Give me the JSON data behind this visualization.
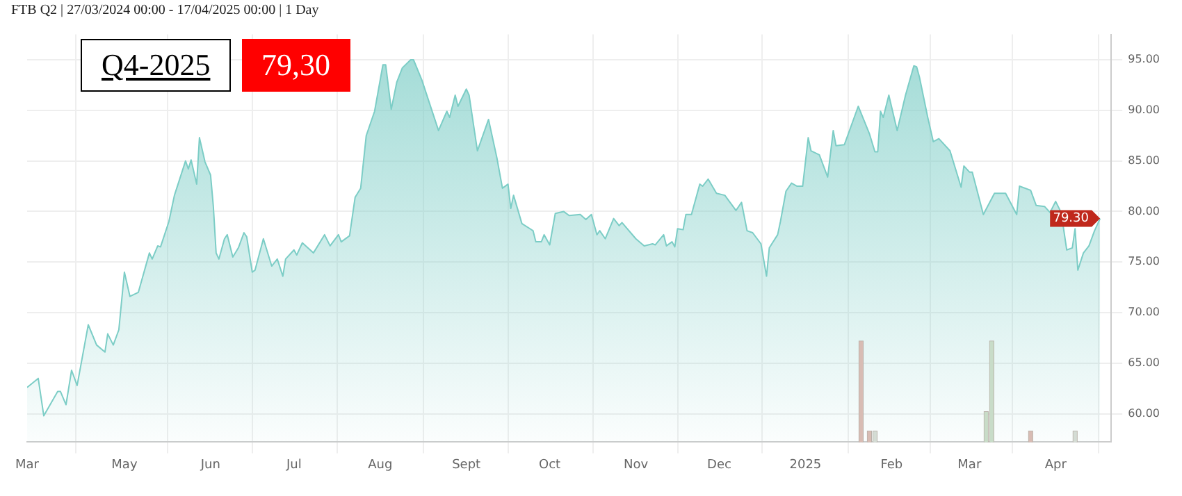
{
  "chart_data": {
    "type": "area",
    "title": "FTB Q2 | 27/03/2024 00:00 - 17/04/2025 00:00 | 1 Day",
    "annotations": [
      "Q4-2025",
      "79,30",
      {
        "text": "79.30",
        "x": "2025-04-17",
        "y": 79.3
      }
    ],
    "xlim": [
      "2024-03-27",
      "2025-04-21"
    ],
    "xticks": [
      {
        "value": "2024-03-27",
        "label": "Mar"
      },
      {
        "value": "2024-05-01",
        "label": "May"
      },
      {
        "value": "2024-06-01",
        "label": "Jun"
      },
      {
        "value": "2024-07-01",
        "label": "Jul"
      },
      {
        "value": "2024-08-01",
        "label": "Aug"
      },
      {
        "value": "2024-09-01",
        "label": "Sept"
      },
      {
        "value": "2024-10-01",
        "label": "Oct"
      },
      {
        "value": "2024-11-01",
        "label": "Nov"
      },
      {
        "value": "2024-12-01",
        "label": "Dec"
      },
      {
        "value": "2025-01-01",
        "label": "2025"
      },
      {
        "value": "2025-02-01",
        "label": "Feb"
      },
      {
        "value": "2025-03-01",
        "label": "Mar"
      },
      {
        "value": "2025-04-01",
        "label": "Apr"
      }
    ],
    "ylim": [
      57.2,
      97.5
    ],
    "yticks": [
      {
        "value": 60,
        "label": "60.00"
      },
      {
        "value": 65,
        "label": "65.00"
      },
      {
        "value": 70,
        "label": "70.00"
      },
      {
        "value": 75,
        "label": "75.00"
      },
      {
        "value": 80,
        "label": "80.00"
      },
      {
        "value": 85,
        "label": "85.00"
      },
      {
        "value": 90,
        "label": "90.00"
      },
      {
        "value": 95,
        "label": "95.00"
      }
    ],
    "grid": true,
    "legend": false,
    "series": [
      {
        "color": "#7ccdc6",
        "x": [
          "2024-03-27",
          "2024-03-31",
          "2024-04-02",
          "2024-04-07",
          "2024-04-08",
          "2024-04-10",
          "2024-04-12",
          "2024-04-14",
          "2024-04-18",
          "2024-04-21",
          "2024-04-24",
          "2024-04-25",
          "2024-04-27",
          "2024-04-29",
          "2024-05-01",
          "2024-05-03",
          "2024-05-06",
          "2024-05-10",
          "2024-05-11",
          "2024-05-13",
          "2024-05-14",
          "2024-05-17",
          "2024-05-19",
          "2024-05-23",
          "2024-05-24",
          "2024-05-25",
          "2024-05-27",
          "2024-05-28",
          "2024-05-30",
          "2024-06-01",
          "2024-06-02",
          "2024-06-03",
          "2024-06-04",
          "2024-06-06",
          "2024-06-07",
          "2024-06-09",
          "2024-06-11",
          "2024-06-13",
          "2024-06-14",
          "2024-06-16",
          "2024-06-17",
          "2024-06-20",
          "2024-06-23",
          "2024-06-25",
          "2024-06-27",
          "2024-06-28",
          "2024-07-01",
          "2024-07-02",
          "2024-07-04",
          "2024-07-08",
          "2024-07-12",
          "2024-07-14",
          "2024-07-17",
          "2024-07-18",
          "2024-07-21",
          "2024-07-23",
          "2024-07-25",
          "2024-07-27",
          "2024-07-30",
          "2024-08-02",
          "2024-08-03",
          "2024-08-05",
          "2024-08-07",
          "2024-08-09",
          "2024-08-12",
          "2024-08-13",
          "2024-08-16",
          "2024-08-22",
          "2024-08-25",
          "2024-08-26",
          "2024-08-28",
          "2024-08-29",
          "2024-09-01",
          "2024-09-02",
          "2024-09-05",
          "2024-09-09",
          "2024-09-12",
          "2024-09-14",
          "2024-09-16",
          "2024-09-17",
          "2024-09-18",
          "2024-09-21",
          "2024-09-25",
          "2024-09-26",
          "2024-09-28",
          "2024-09-29",
          "2024-10-01",
          "2024-10-03",
          "2024-10-06",
          "2024-10-08",
          "2024-10-12",
          "2024-10-14",
          "2024-10-16",
          "2024-10-18",
          "2024-10-19",
          "2024-10-21",
          "2024-10-24",
          "2024-10-26",
          "2024-10-27",
          "2024-11-01",
          "2024-11-04",
          "2024-11-07",
          "2024-11-08",
          "2024-11-11",
          "2024-11-12",
          "2024-11-14",
          "2024-11-15",
          "2024-11-16",
          "2024-11-18",
          "2024-11-19",
          "2024-11-21",
          "2024-11-24",
          "2024-11-25",
          "2024-11-27",
          "2024-11-30",
          "2024-12-03",
          "2024-12-07",
          "2024-12-09",
          "2024-12-11",
          "2024-12-13",
          "2024-12-16",
          "2024-12-18",
          "2024-12-19",
          "2024-12-22",
          "2024-12-23",
          "2024-12-25",
          "2024-12-27",
          "2024-12-29",
          "2024-12-31",
          "2025-01-02",
          "2025-01-03",
          "2025-01-06",
          "2025-01-09",
          "2025-01-11",
          "2025-01-12",
          "2025-01-15",
          "2025-01-20",
          "2025-01-24",
          "2025-01-26",
          "2025-01-27",
          "2025-01-28",
          "2025-01-29",
          "2025-01-31",
          "2025-02-03",
          "2025-02-06",
          "2025-02-09",
          "2025-02-10",
          "2025-02-11",
          "2025-02-14",
          "2025-02-16",
          "2025-02-18",
          "2025-02-22",
          "2025-02-26",
          "2025-02-27",
          "2025-03-01",
          "2025-03-02",
          "2025-03-06",
          "2025-03-10",
          "2025-03-14",
          "2025-03-18",
          "2025-03-19",
          "2025-03-23",
          "2025-03-25",
          "2025-03-28",
          "2025-03-30",
          "2025-04-01",
          "2025-04-03",
          "2025-04-05",
          "2025-04-07",
          "2025-04-08",
          "2025-04-09",
          "2025-04-11",
          "2025-04-13",
          "2025-04-15",
          "2025-04-17"
        ],
        "values": [
          62.6,
          63.5,
          59.8,
          62.2,
          62.2,
          60.9,
          64.3,
          62.8,
          68.8,
          66.8,
          66.1,
          67.9,
          66.8,
          68.3,
          74.0,
          71.6,
          72.0,
          75.9,
          75.3,
          76.6,
          76.5,
          79.0,
          81.6,
          85.0,
          84.2,
          85.1,
          82.7,
          87.3,
          84.9,
          83.6,
          80.5,
          75.9,
          75.3,
          77.3,
          77.7,
          75.5,
          76.4,
          77.9,
          77.5,
          74.0,
          74.2,
          77.3,
          74.6,
          75.3,
          73.6,
          75.3,
          76.2,
          75.7,
          76.9,
          75.9,
          77.7,
          76.6,
          77.7,
          77.0,
          77.6,
          81.4,
          82.3,
          87.5,
          89.9,
          94.5,
          94.5,
          90.1,
          92.8,
          94.2,
          95.0,
          95.0,
          93.0,
          88.0,
          89.9,
          89.3,
          91.5,
          90.4,
          92.1,
          91.5,
          86.0,
          89.1,
          85.3,
          82.3,
          82.7,
          80.3,
          81.6,
          78.8,
          78.1,
          77.0,
          77.0,
          77.7,
          76.7,
          79.8,
          80.0,
          79.6,
          79.7,
          79.2,
          79.7,
          77.7,
          78.1,
          77.3,
          79.3,
          78.6,
          78.9,
          77.3,
          76.6,
          76.8,
          76.7,
          77.7,
          76.6,
          77.0,
          76.5,
          78.3,
          78.2,
          79.7,
          79.7,
          82.7,
          82.5,
          83.2,
          81.8,
          81.6,
          80.1,
          80.9,
          78.1,
          77.9,
          76.8,
          73.6,
          76.4,
          77.7,
          79.0,
          82.0,
          82.8,
          82.5,
          82.5,
          87.3,
          86.0,
          85.6,
          83.4,
          88.0,
          86.5,
          86.6,
          90.4,
          87.7,
          85.9,
          85.9,
          89.9,
          89.3,
          91.5,
          88.0,
          91.5,
          94.4,
          94.3,
          93.3,
          89.3,
          86.9,
          87.2,
          86.0,
          82.4,
          84.5,
          83.9,
          83.9,
          79.7,
          81.8,
          81.8,
          79.7,
          82.5,
          82.1,
          80.6,
          80.5,
          79.9,
          81.0,
          79.9,
          76.2,
          76.4,
          78.3,
          74.2,
          75.9,
          76.6,
          78.1,
          79.3
        ]
      },
      {
        "type": "bar",
        "x": [
          "2025-01-21",
          "2025-01-24",
          "2025-01-26",
          "2025-03-07",
          "2025-03-09",
          "2025-03-23",
          "2025-04-08"
        ],
        "values": [
          67.2,
          58.3,
          58.3,
          60.2,
          67.2,
          58.3,
          58.3
        ],
        "colors": [
          "#d8bcb4",
          "#d8bcb4",
          "#d4dcd4",
          "#c8dcc8",
          "#c8dcc8",
          "#d8bcb4",
          "#d4dcd4"
        ]
      }
    ]
  }
}
